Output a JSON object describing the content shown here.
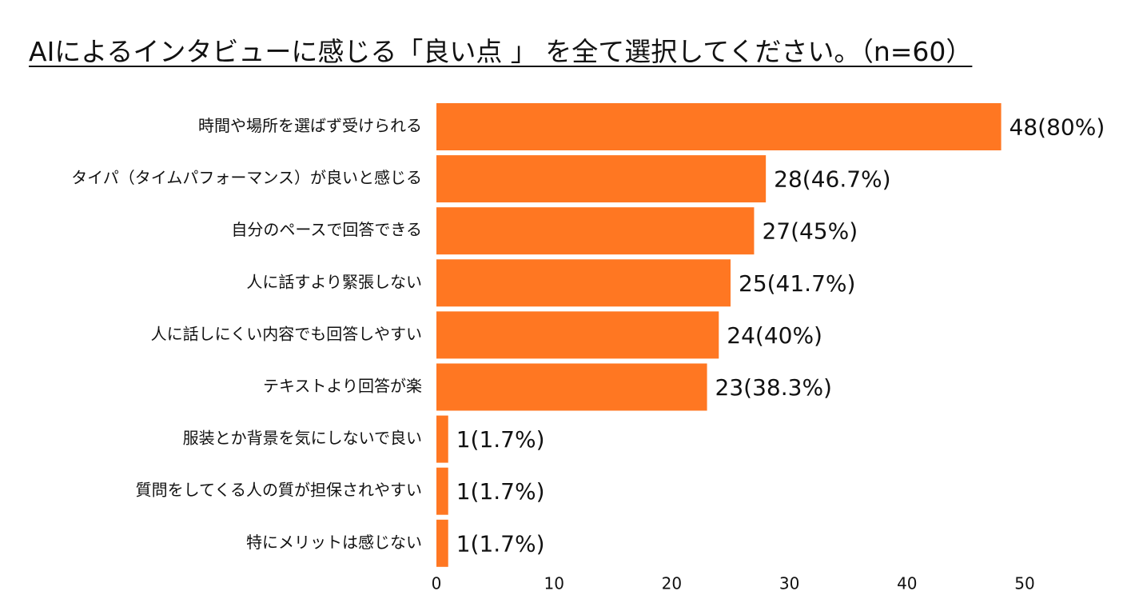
{
  "title": "AIによるインタビューに感じる「良い点 」 を全て選択してください。（n=60）",
  "chart_data": {
    "type": "bar",
    "orientation": "horizontal",
    "title": "AIによるインタビューに感じる「良い点 」 を全て選択してください。（n=60）",
    "categories": [
      "時間や場所を選ばず受けられる",
      "タイパ（タイムパフォーマンス）が良いと感じる",
      "自分のペースで回答できる",
      "人に話すより緊張しない",
      "人に話しにくい内容でも回答しやすい",
      "テキストより回答が楽",
      "服装とか背景を気にしないで良い",
      "質問をしてくる人の質が担保されやすい",
      "特にメリットは感じない"
    ],
    "values": [
      48,
      28,
      27,
      25,
      24,
      23,
      1,
      1,
      1
    ],
    "data_labels": [
      "48(80%)",
      "28(46.7%)",
      "27(45%)",
      "25(41.7%)",
      "24(40%)",
      "23(38.3%)",
      "1(1.7%)",
      "1(1.7%)",
      "1(1.7%)"
    ],
    "xlim": [
      0,
      50
    ],
    "xticks": [
      "0",
      "10",
      "20",
      "30",
      "40",
      "50"
    ],
    "bar_color": "#FF7722",
    "grid": false,
    "legend": "none"
  }
}
